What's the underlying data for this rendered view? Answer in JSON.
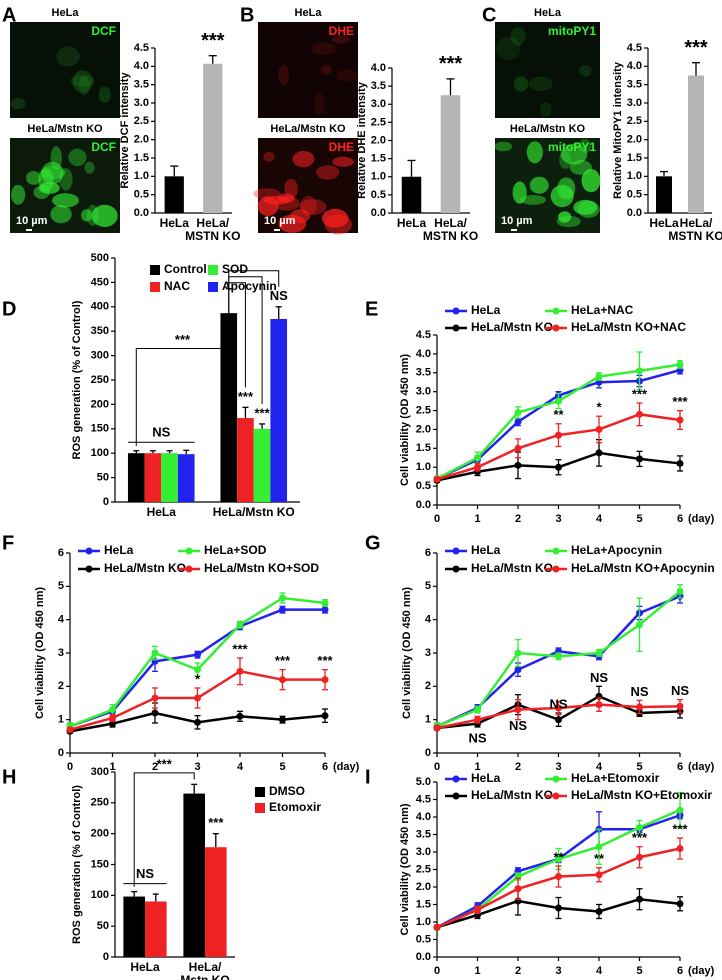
{
  "chart_data": [
    {
      "panel": "A",
      "type": "bar",
      "images": [
        {
          "title": "HeLa",
          "stain": "DCF"
        },
        {
          "title": "HeLa/Mstn KO",
          "stain": "DCF",
          "scale_bar": "10 µm"
        }
      ],
      "stain_color": "#33ee33",
      "y_label": "Relative DCF intensity",
      "categories": [
        "HeLa",
        "HeLa/\nMSTN KO"
      ],
      "values": [
        1.0,
        4.07
      ],
      "errors": [
        0.28,
        0.22
      ],
      "colors": [
        "#000000",
        "#b5b5b5"
      ],
      "ylim": [
        0,
        4.5
      ],
      "yticks": [
        {
          "value": 0,
          "label": "0.0"
        },
        0.5,
        {
          "value": 1,
          "label": "1.0"
        },
        1.5,
        {
          "value": 2,
          "label": "2.0"
        },
        2.5,
        {
          "value": 3,
          "label": "3.0"
        },
        3.5,
        {
          "value": 4,
          "label": "4.0"
        },
        4.5
      ],
      "annotations": [
        {
          "text": "***",
          "category": 1
        }
      ]
    },
    {
      "panel": "B",
      "type": "bar",
      "images": [
        {
          "title": "HeLa",
          "stain": "DHE"
        },
        {
          "title": "HeLa/Mstn KO",
          "stain": "DHE",
          "scale_bar": "10 µm"
        }
      ],
      "stain_color": "#ff2020",
      "y_label": "Relative DHE intensity",
      "categories": [
        "HeLa",
        "HeLa/\nMSTN KO"
      ],
      "values": [
        1.0,
        3.25
      ],
      "errors": [
        0.45,
        0.45
      ],
      "colors": [
        "#000000",
        "#b5b5b5"
      ],
      "ylim": [
        0,
        4
      ],
      "yticks": [
        {
          "value": 0,
          "label": "0.0"
        },
        0.5,
        {
          "value": 1,
          "label": "1.0"
        },
        1.5,
        {
          "value": 2,
          "label": "2.0"
        },
        2.5,
        {
          "value": 3,
          "label": "3.0"
        },
        3.5,
        {
          "value": 4,
          "label": "4.0"
        }
      ],
      "annotations": [
        {
          "text": "***",
          "category": 1
        }
      ]
    },
    {
      "panel": "C",
      "type": "bar",
      "images": [
        {
          "title": "HeLa",
          "stain": "mitoPY1"
        },
        {
          "title": "HeLa/Mstn KO",
          "stain": "mitoPY1",
          "scale_bar": "10 µm"
        }
      ],
      "stain_color": "#33ee33",
      "y_label": "Relative MitoPY1 intensity",
      "categories": [
        "HeLa",
        "HeLa/\nMSTN KO"
      ],
      "values": [
        1.0,
        3.75
      ],
      "errors": [
        0.13,
        0.35
      ],
      "colors": [
        "#000000",
        "#b5b5b5"
      ],
      "ylim": [
        0,
        4.5
      ],
      "yticks": [
        {
          "value": 0,
          "label": "0.0"
        },
        0.5,
        {
          "value": 1,
          "label": "1.0"
        },
        1.5,
        {
          "value": 2,
          "label": "2.0"
        },
        2.5,
        {
          "value": 3,
          "label": "3.0"
        },
        3.5,
        {
          "value": 4,
          "label": "4.0"
        },
        4.5
      ],
      "annotations": [
        {
          "text": "***",
          "category": 1
        }
      ]
    },
    {
      "panel": "D",
      "type": "bar",
      "y_label": "ROS generation (% of Control)",
      "categories": [
        "HeLa",
        "HeLa/Mstn KO"
      ],
      "series": [
        {
          "name": "Control",
          "color": "#000000",
          "values": [
            100,
            387
          ],
          "errors": [
            5,
            50
          ]
        },
        {
          "name": "NAC",
          "color": "#ee2222",
          "values": [
            100,
            172
          ],
          "errors": [
            5,
            22
          ]
        },
        {
          "name": "SOD",
          "color": "#33ee33",
          "values": [
            100,
            150
          ],
          "errors": [
            5,
            10
          ]
        },
        {
          "name": "Apocynin",
          "color": "#2222ee",
          "values": [
            98,
            375
          ],
          "errors": [
            8,
            25
          ]
        }
      ],
      "ylim": [
        0,
        500
      ],
      "yticks": [
        0,
        50,
        100,
        150,
        200,
        250,
        300,
        350,
        400,
        450,
        500
      ],
      "annotations": [
        {
          "text": "NS",
          "category": 0
        },
        {
          "text": "***",
          "between": [
            0,
            1
          ]
        },
        {
          "text": "***",
          "category": 1,
          "series": 1
        },
        {
          "text": "***",
          "category": 1,
          "series": 2
        },
        {
          "text": "NS",
          "category": 1,
          "series": 3
        }
      ]
    },
    {
      "panel": "E",
      "type": "line",
      "y_label": "Cell viability (OD 450 nm)",
      "x_label": "(day)",
      "x": [
        0,
        1,
        2,
        3,
        4,
        5,
        6
      ],
      "xlim": [
        0,
        6
      ],
      "xticks": [
        0,
        1,
        2,
        3,
        4,
        5,
        6
      ],
      "ylim": [
        0,
        4.5
      ],
      "yticks": [
        {
          "value": 0,
          "label": "0.0"
        },
        0.5,
        {
          "value": 1,
          "label": "1.0"
        },
        1.5,
        {
          "value": 2,
          "label": "2.0"
        },
        2.5,
        {
          "value": 3,
          "label": "3.0"
        },
        3.5,
        {
          "value": 4,
          "label": "4.0"
        },
        4.5
      ],
      "series": [
        {
          "name": "HeLa",
          "color": "#2222ee",
          "values": [
            0.7,
            1.2,
            2.2,
            2.9,
            3.25,
            3.28,
            3.57
          ],
          "errors": [
            0.05,
            0.1,
            0.1,
            0.1,
            0.15,
            0.15,
            0.1
          ]
        },
        {
          "name": "HeLa+NAC",
          "color": "#33ee33",
          "values": [
            0.7,
            1.25,
            2.45,
            2.75,
            3.4,
            3.55,
            3.72
          ],
          "errors": [
            0.05,
            0.15,
            0.15,
            0.2,
            0.1,
            0.5,
            0.1
          ]
        },
        {
          "name": "HeLa/Mstn KO",
          "color": "#000000",
          "values": [
            0.65,
            0.88,
            1.05,
            1.0,
            1.38,
            1.22,
            1.1
          ],
          "errors": [
            0.05,
            0.1,
            0.35,
            0.2,
            0.35,
            0.2,
            0.2
          ]
        },
        {
          "name": "HeLa/Mstn KO+NAC",
          "color": "#ee2222",
          "values": [
            0.68,
            1.0,
            1.5,
            1.85,
            2.0,
            2.4,
            2.25
          ],
          "errors": [
            0.05,
            0.1,
            0.25,
            0.3,
            0.35,
            0.3,
            0.25
          ]
        }
      ],
      "annotations": [
        {
          "x": 3,
          "text": "**",
          "series": 3
        },
        {
          "x": 4,
          "text": "*",
          "series": 3
        },
        {
          "x": 5,
          "text": "***",
          "series": 3
        },
        {
          "x": 6,
          "text": "***",
          "series": 3
        }
      ]
    },
    {
      "panel": "F",
      "type": "line",
      "y_label": "Cell viability (OD 450 nm)",
      "x_label": "(day)",
      "x": [
        0,
        1,
        2,
        3,
        4,
        5,
        6
      ],
      "xlim": [
        0,
        6
      ],
      "xticks": [
        0,
        1,
        2,
        3,
        4,
        5,
        6
      ],
      "ylim": [
        0,
        6
      ],
      "yticks": [
        0,
        1,
        2,
        3,
        4,
        5,
        6
      ],
      "series": [
        {
          "name": "HeLa",
          "color": "#2222ee",
          "values": [
            0.8,
            1.25,
            2.75,
            2.95,
            3.8,
            4.3,
            4.3
          ],
          "errors": [
            0.1,
            0.1,
            0.3,
            0.1,
            0.1,
            0.1,
            0.1
          ]
        },
        {
          "name": "HeLa+SOD",
          "color": "#33ee33",
          "values": [
            0.8,
            1.3,
            3.0,
            2.5,
            3.85,
            4.65,
            4.5
          ],
          "errors": [
            0.1,
            0.15,
            0.2,
            0.2,
            0.1,
            0.15,
            0.1
          ]
        },
        {
          "name": "HeLa/Mstn KO",
          "color": "#000000",
          "values": [
            0.65,
            0.88,
            1.2,
            0.92,
            1.1,
            1.0,
            1.12
          ],
          "errors": [
            0.05,
            0.1,
            0.3,
            0.2,
            0.15,
            0.1,
            0.2
          ]
        },
        {
          "name": "HeLa/Mstn KO+SOD",
          "color": "#ee2222",
          "values": [
            0.7,
            1.05,
            1.65,
            1.65,
            2.45,
            2.2,
            2.2
          ],
          "errors": [
            0.05,
            0.1,
            0.3,
            0.3,
            0.4,
            0.3,
            0.3
          ]
        }
      ],
      "annotations": [
        {
          "x": 3,
          "text": "*",
          "series": 3
        },
        {
          "x": 4,
          "text": "***",
          "series": 3
        },
        {
          "x": 5,
          "text": "***",
          "series": 3
        },
        {
          "x": 6,
          "text": "***",
          "series": 3
        }
      ]
    },
    {
      "panel": "G",
      "type": "line",
      "y_label": "Cell viability (OD 450 nm)",
      "x_label": "(day)",
      "x": [
        0,
        1,
        2,
        3,
        4,
        5,
        6
      ],
      "xlim": [
        0,
        6
      ],
      "xticks": [
        0,
        1,
        2,
        3,
        4,
        5,
        6
      ],
      "ylim": [
        0,
        6
      ],
      "yticks": [
        0,
        1,
        2,
        3,
        4,
        5,
        6
      ],
      "series": [
        {
          "name": "HeLa",
          "color": "#2222ee",
          "values": [
            0.8,
            1.35,
            2.5,
            3.05,
            2.9,
            4.2,
            4.7
          ],
          "errors": [
            0.1,
            0.1,
            0.2,
            0.1,
            0.1,
            0.2,
            0.2
          ]
        },
        {
          "name": "HeLa+Apocynin",
          "color": "#33ee33",
          "values": [
            0.8,
            1.3,
            3.0,
            2.9,
            3.0,
            3.85,
            4.85
          ],
          "errors": [
            0.1,
            0.1,
            0.4,
            0.1,
            0.1,
            0.8,
            0.2
          ]
        },
        {
          "name": "HeLa/Mstn KO",
          "color": "#000000",
          "values": [
            0.75,
            0.88,
            1.45,
            1.0,
            1.7,
            1.2,
            1.25
          ],
          "errors": [
            0.05,
            0.1,
            0.3,
            0.2,
            0.3,
            0.1,
            0.2
          ]
        },
        {
          "name": "HeLa/Mstn KO+Apocynin",
          "color": "#ee2222",
          "values": [
            0.75,
            1.0,
            1.3,
            1.35,
            1.45,
            1.38,
            1.4
          ],
          "errors": [
            0.05,
            0.1,
            0.3,
            0.2,
            0.2,
            0.2,
            0.2
          ]
        }
      ],
      "annotations": [
        {
          "x": 1,
          "text": "NS",
          "series": 2,
          "position": "below"
        },
        {
          "x": 2,
          "text": "NS",
          "series": 2,
          "position": "below"
        },
        {
          "x": 3,
          "text": "NS",
          "series": 2
        },
        {
          "x": 4,
          "text": "NS",
          "series": 2
        },
        {
          "x": 5,
          "text": "NS",
          "series": 3
        },
        {
          "x": 6,
          "text": "NS",
          "series": 3
        }
      ]
    },
    {
      "panel": "H",
      "type": "bar",
      "y_label": "ROS generation (% of Control)",
      "categories": [
        "HeLa",
        "HeLa/\nMstn KO"
      ],
      "series": [
        {
          "name": "DMSO",
          "color": "#000000",
          "values": [
            98,
            265
          ],
          "errors": [
            8,
            15
          ]
        },
        {
          "name": "Etomoxir",
          "color": "#ee2222",
          "values": [
            90,
            178
          ],
          "errors": [
            12,
            22
          ]
        }
      ],
      "ylim": [
        0,
        300
      ],
      "yticks": [
        0,
        50,
        100,
        150,
        200,
        250,
        300
      ],
      "annotations": [
        {
          "text": "NS",
          "category": 0
        },
        {
          "text": "***",
          "between": [
            0,
            1
          ]
        },
        {
          "text": "***",
          "category": 1,
          "series": 1
        }
      ]
    },
    {
      "panel": "I",
      "type": "line",
      "y_label": "Cell viability (OD 450 nm)",
      "x_label": "(day)",
      "x": [
        0,
        1,
        2,
        3,
        4,
        5,
        6
      ],
      "xlim": [
        0,
        6
      ],
      "xticks": [
        0,
        1,
        2,
        3,
        4,
        5,
        6
      ],
      "ylim": [
        0,
        5
      ],
      "yticks": [
        {
          "value": 0,
          "label": "0.0"
        },
        0.5,
        {
          "value": 1,
          "label": "1.0"
        },
        1.5,
        {
          "value": 2,
          "label": "2.0"
        },
        2.5,
        {
          "value": 3,
          "label": "3.0"
        },
        3.5,
        {
          "value": 4,
          "label": "4.0"
        },
        4.5,
        {
          "value": 5,
          "label": "5.0"
        }
      ],
      "series": [
        {
          "name": "HeLa",
          "color": "#2222ee",
          "values": [
            0.85,
            1.45,
            2.45,
            2.8,
            3.65,
            3.65,
            4.05
          ],
          "errors": [
            0.05,
            0.1,
            0.1,
            0.1,
            0.5,
            0.1,
            0.1
          ]
        },
        {
          "name": "HeLa+Etomoxir",
          "color": "#33ee33",
          "values": [
            0.85,
            1.35,
            2.3,
            2.8,
            3.15,
            3.7,
            4.2
          ],
          "errors": [
            0.05,
            0.1,
            0.1,
            0.3,
            0.5,
            0.2,
            0.5
          ]
        },
        {
          "name": "HeLa/Mstn KO",
          "color": "#000000",
          "values": [
            0.85,
            1.2,
            1.6,
            1.4,
            1.3,
            1.65,
            1.52
          ],
          "errors": [
            0.05,
            0.1,
            0.4,
            0.3,
            0.2,
            0.3,
            0.2
          ]
        },
        {
          "name": "HeLa/Mstn KO+Etomoxir",
          "color": "#ee2222",
          "values": [
            0.85,
            1.35,
            1.95,
            2.3,
            2.35,
            2.85,
            3.1
          ],
          "errors": [
            0.05,
            0.1,
            0.3,
            0.3,
            0.2,
            0.3,
            0.3
          ]
        }
      ],
      "annotations": [
        {
          "x": 3,
          "text": "**",
          "series": 3
        },
        {
          "x": 4,
          "text": "**",
          "series": 3
        },
        {
          "x": 5,
          "text": "***",
          "series": 3
        },
        {
          "x": 6,
          "text": "***",
          "series": 3
        }
      ]
    }
  ]
}
